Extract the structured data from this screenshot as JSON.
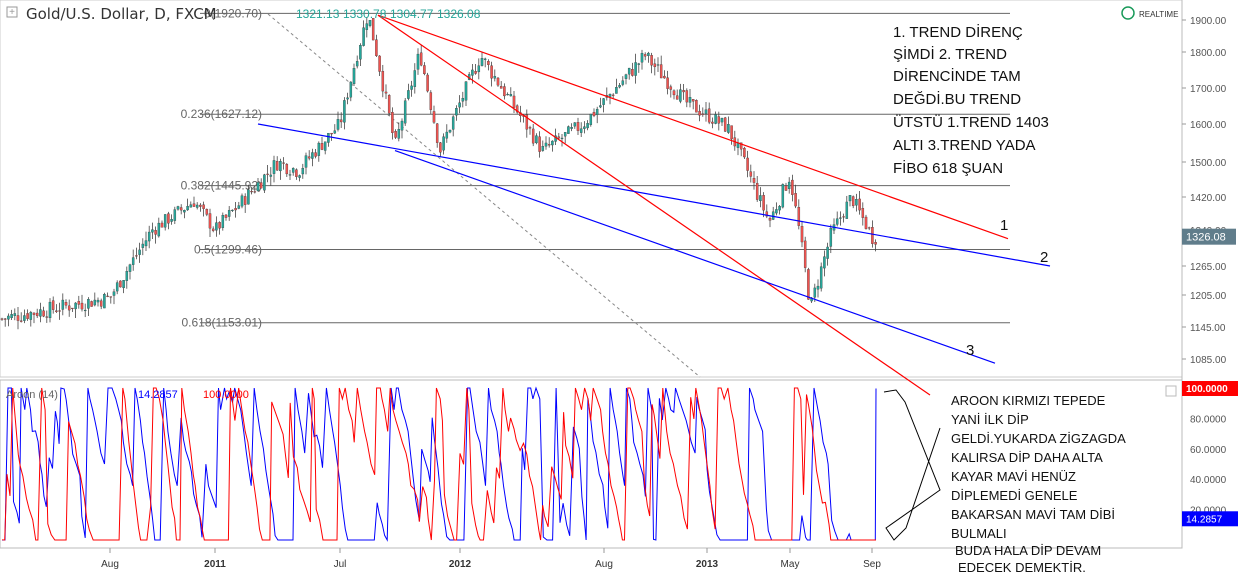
{
  "header": {
    "symbol": "Gold/U.S. Dollar, D, FXCM",
    "ohlc": [
      "1321.13",
      "1330.78",
      "1304.77",
      "1326.08"
    ],
    "realtime": "REALTIME"
  },
  "annotations": {
    "trend_note": [
      "1. TREND DİRENÇ",
      "ŞİMDİ 2. TREND",
      "DİRENCİNDE TAM",
      "DEĞDİ.BU TREND",
      "ÜTSTÜ 1.TREND 1403",
      "ALTI 3.TREND YADA",
      "FİBO 618 ŞUAN"
    ],
    "aroon_note": [
      "AROON KIRMIZI TEPEDE",
      "YANİ İLK DİP",
      "GELDİ.YUKARDA ZİGZAGDA",
      "KALIRSA DİP DAHA ALTA",
      "KAYAR MAVİ HENÜZ",
      "DİPLEMEDİ GENELE",
      "BAKARSAN MAVİ TAM DİBİ",
      "BULMALI"
    ],
    "bottom_note": [
      "BUDA HALA DİP DEVAM",
      "EDECEK DEMEKTİR."
    ],
    "trend_labels": [
      "1",
      "2",
      "3"
    ]
  },
  "chart_data": {
    "type": "line",
    "title": "Gold/U.S. Dollar, D, FXCM",
    "x_ticks": [
      "Aug",
      "2011",
      "Jul",
      "2012",
      "Aug",
      "2013",
      "May",
      "Sep"
    ],
    "y_ticks": [
      "1900.00",
      "1800.00",
      "1700.00",
      "1600.00",
      "1500.00",
      "1420.00",
      "1340.00",
      "1265.00",
      "1205.00",
      "1145.00",
      "1085.00"
    ],
    "last_price": "1326.08",
    "series": [
      {
        "values": [
          {
            "x": "2010-05",
            "y": 1160
          },
          {
            "x": "2010-08",
            "y": 1200
          },
          {
            "x": "2010-10",
            "y": 1340
          },
          {
            "x": "2010-12",
            "y": 1410
          },
          {
            "x": "2011-01",
            "y": 1340
          },
          {
            "x": "2011-04",
            "y": 1500
          },
          {
            "x": "2011-05",
            "y": 1480
          },
          {
            "x": "2011-07",
            "y": 1600
          },
          {
            "x": "2011-09",
            "y": 1920
          },
          {
            "x": "2011-09",
            "y": 1540
          },
          {
            "x": "2011-11",
            "y": 1800
          },
          {
            "x": "2011-12",
            "y": 1530
          },
          {
            "x": "2012-02",
            "y": 1790
          },
          {
            "x": "2012-05",
            "y": 1530
          },
          {
            "x": "2012-07",
            "y": 1600
          },
          {
            "x": "2012-10",
            "y": 1790
          },
          {
            "x": "2012-12",
            "y": 1660
          },
          {
            "x": "2013-02",
            "y": 1590
          },
          {
            "x": "2013-04",
            "y": 1360
          },
          {
            "x": "2013-05",
            "y": 1470
          },
          {
            "x": "2013-06",
            "y": 1180
          },
          {
            "x": "2013-07",
            "y": 1330
          },
          {
            "x": "2013-08",
            "y": 1420
          },
          {
            "x": "2013-09",
            "y": 1326
          }
        ]
      }
    ],
    "fib_levels": [
      {
        "label": "0(1920.70)",
        "value": 1920.7
      },
      {
        "label": "0.236(1627.12)",
        "value": 1627.12
      },
      {
        "label": "0.382(1445.92)",
        "value": 1445.92
      },
      {
        "label": "0.5(1299.46)",
        "value": 1299.46
      },
      {
        "label": "0.618(1153.01)",
        "value": 1153.01
      }
    ],
    "aroon": {
      "label": "Aroon (14)",
      "up": "14.2857",
      "down": "100.0000",
      "y_ticks": [
        "100.0000",
        "80.0000",
        "60.0000",
        "40.0000",
        "20.0000"
      ],
      "up_color": "#0000ff",
      "down_color": "#ff0000"
    },
    "colors": {
      "up": "#26a69a",
      "down": "#ef5350",
      "wick": "#555555",
      "trend_red": "#ff0000",
      "trend_blue": "#0000ff",
      "fib": "#555555"
    }
  }
}
